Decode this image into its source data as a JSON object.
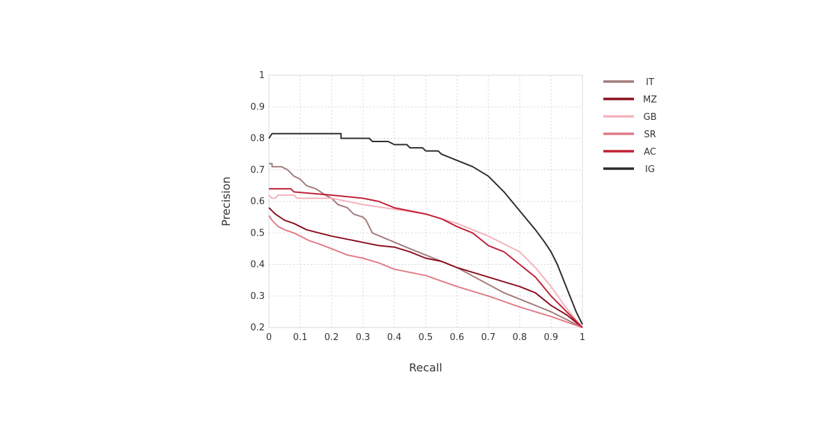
{
  "chart_data": {
    "type": "line",
    "xlabel": "Recall",
    "ylabel": "Precision",
    "xlim": [
      0,
      1
    ],
    "ylim": [
      0.2,
      1
    ],
    "xticks": [
      "0",
      "0.1",
      "0.2",
      "0.3",
      "0.4",
      "0.5",
      "0.6",
      "0.7",
      "0.8",
      "0.9",
      "1"
    ],
    "yticks": [
      "0.2",
      "0.3",
      "0.4",
      "0.5",
      "0.6",
      "0.7",
      "0.8",
      "0.9",
      "1"
    ],
    "grid": true,
    "legend_position": "right",
    "series": [
      {
        "name": "IT",
        "color": "#a37b7b",
        "points": [
          [
            0,
            0.72
          ],
          [
            0.01,
            0.72
          ],
          [
            0.01,
            0.71
          ],
          [
            0.04,
            0.71
          ],
          [
            0.06,
            0.7
          ],
          [
            0.08,
            0.68
          ],
          [
            0.1,
            0.67
          ],
          [
            0.12,
            0.65
          ],
          [
            0.15,
            0.64
          ],
          [
            0.18,
            0.62
          ],
          [
            0.2,
            0.61
          ],
          [
            0.22,
            0.59
          ],
          [
            0.25,
            0.58
          ],
          [
            0.27,
            0.56
          ],
          [
            0.3,
            0.55
          ],
          [
            0.31,
            0.54
          ],
          [
            0.33,
            0.5
          ],
          [
            0.45,
            0.45
          ],
          [
            0.6,
            0.39
          ],
          [
            0.75,
            0.31
          ],
          [
            0.9,
            0.25
          ],
          [
            1,
            0.2
          ]
        ]
      },
      {
        "name": "MZ",
        "color": "#8b0f1f",
        "points": [
          [
            0,
            0.58
          ],
          [
            0.02,
            0.56
          ],
          [
            0.05,
            0.54
          ],
          [
            0.08,
            0.53
          ],
          [
            0.12,
            0.51
          ],
          [
            0.16,
            0.5
          ],
          [
            0.2,
            0.49
          ],
          [
            0.25,
            0.48
          ],
          [
            0.3,
            0.47
          ],
          [
            0.35,
            0.46
          ],
          [
            0.4,
            0.455
          ],
          [
            0.45,
            0.44
          ],
          [
            0.5,
            0.42
          ],
          [
            0.55,
            0.41
          ],
          [
            0.6,
            0.39
          ],
          [
            0.65,
            0.375
          ],
          [
            0.7,
            0.36
          ],
          [
            0.75,
            0.345
          ],
          [
            0.8,
            0.33
          ],
          [
            0.85,
            0.31
          ],
          [
            0.9,
            0.27
          ],
          [
            0.95,
            0.24
          ],
          [
            1,
            0.2
          ]
        ]
      },
      {
        "name": "GB",
        "color": "#f4b3bb",
        "points": [
          [
            0,
            0.62
          ],
          [
            0.01,
            0.61
          ],
          [
            0.02,
            0.61
          ],
          [
            0.03,
            0.62
          ],
          [
            0.08,
            0.62
          ],
          [
            0.09,
            0.61
          ],
          [
            0.2,
            0.61
          ],
          [
            0.3,
            0.59
          ],
          [
            0.4,
            0.575
          ],
          [
            0.5,
            0.56
          ],
          [
            0.6,
            0.53
          ],
          [
            0.7,
            0.49
          ],
          [
            0.76,
            0.46
          ],
          [
            0.8,
            0.44
          ],
          [
            0.85,
            0.39
          ],
          [
            0.9,
            0.33
          ],
          [
            0.95,
            0.26
          ],
          [
            1,
            0.2
          ]
        ]
      },
      {
        "name": "SR",
        "color": "#e07b87",
        "points": [
          [
            0,
            0.555
          ],
          [
            0.01,
            0.54
          ],
          [
            0.02,
            0.53
          ],
          [
            0.03,
            0.52
          ],
          [
            0.05,
            0.51
          ],
          [
            0.08,
            0.5
          ],
          [
            0.1,
            0.49
          ],
          [
            0.13,
            0.475
          ],
          [
            0.16,
            0.465
          ],
          [
            0.2,
            0.45
          ],
          [
            0.25,
            0.43
          ],
          [
            0.3,
            0.42
          ],
          [
            0.35,
            0.405
          ],
          [
            0.4,
            0.385
          ],
          [
            0.45,
            0.375
          ],
          [
            0.5,
            0.365
          ],
          [
            0.6,
            0.33
          ],
          [
            0.7,
            0.3
          ],
          [
            0.8,
            0.265
          ],
          [
            0.9,
            0.235
          ],
          [
            1,
            0.2
          ]
        ]
      },
      {
        "name": "AC",
        "color": "#c01f35",
        "points": [
          [
            0,
            0.64
          ],
          [
            0.07,
            0.64
          ],
          [
            0.08,
            0.63
          ],
          [
            0.2,
            0.62
          ],
          [
            0.3,
            0.61
          ],
          [
            0.35,
            0.6
          ],
          [
            0.4,
            0.58
          ],
          [
            0.45,
            0.57
          ],
          [
            0.5,
            0.56
          ],
          [
            0.55,
            0.545
          ],
          [
            0.6,
            0.52
          ],
          [
            0.65,
            0.5
          ],
          [
            0.7,
            0.46
          ],
          [
            0.75,
            0.44
          ],
          [
            0.8,
            0.4
          ],
          [
            0.85,
            0.36
          ],
          [
            0.9,
            0.3
          ],
          [
            0.95,
            0.25
          ],
          [
            1,
            0.2
          ]
        ]
      },
      {
        "name": "IG",
        "color": "#2b2b2b",
        "points": [
          [
            0,
            0.8
          ],
          [
            0.01,
            0.815
          ],
          [
            0.23,
            0.815
          ],
          [
            0.23,
            0.8
          ],
          [
            0.32,
            0.8
          ],
          [
            0.33,
            0.79
          ],
          [
            0.38,
            0.79
          ],
          [
            0.4,
            0.78
          ],
          [
            0.44,
            0.78
          ],
          [
            0.45,
            0.77
          ],
          [
            0.49,
            0.77
          ],
          [
            0.5,
            0.76
          ],
          [
            0.54,
            0.76
          ],
          [
            0.55,
            0.75
          ],
          [
            0.6,
            0.73
          ],
          [
            0.65,
            0.71
          ],
          [
            0.7,
            0.68
          ],
          [
            0.75,
            0.63
          ],
          [
            0.8,
            0.57
          ],
          [
            0.85,
            0.51
          ],
          [
            0.88,
            0.47
          ],
          [
            0.9,
            0.44
          ],
          [
            0.92,
            0.4
          ],
          [
            0.94,
            0.35
          ],
          [
            0.96,
            0.3
          ],
          [
            0.98,
            0.25
          ],
          [
            1,
            0.21
          ]
        ]
      }
    ]
  }
}
